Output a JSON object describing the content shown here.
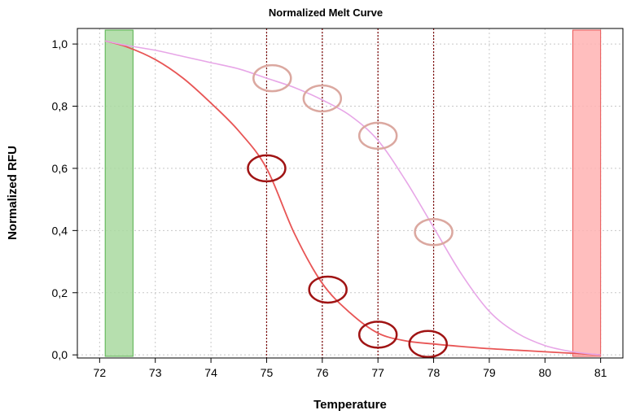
{
  "chart_data": {
    "type": "line",
    "title": "Normalized Melt Curve",
    "xlabel": "Temperature",
    "ylabel": "Normalized RFU",
    "xlim": [
      71.6,
      81.4
    ],
    "ylim": [
      -0.01,
      1.05
    ],
    "x_ticks": [
      "72",
      "73",
      "74",
      "75",
      "76",
      "77",
      "78",
      "79",
      "80",
      "81"
    ],
    "y_ticks": [
      "0,0",
      "0,2",
      "0,4",
      "0,6",
      "0,8",
      "1,0"
    ],
    "grid": true,
    "series": [
      {
        "color": "#e85555",
        "x": [
          72.1,
          72.5,
          73.0,
          73.5,
          74.0,
          74.5,
          75.0,
          75.5,
          76.0,
          76.5,
          77.0,
          77.5,
          78.0,
          78.5,
          79.0,
          79.5,
          80.0,
          80.5,
          81.0
        ],
        "values": [
          1.01,
          0.99,
          0.95,
          0.89,
          0.81,
          0.72,
          0.6,
          0.39,
          0.23,
          0.135,
          0.07,
          0.045,
          0.035,
          0.027,
          0.02,
          0.015,
          0.01,
          0.005,
          0.0
        ]
      },
      {
        "color": "#e7a6e7",
        "x": [
          72.1,
          72.5,
          73.0,
          73.5,
          74.0,
          74.5,
          75.0,
          75.5,
          76.0,
          76.5,
          77.0,
          77.5,
          78.0,
          78.5,
          79.0,
          79.5,
          80.0,
          80.5,
          81.0
        ],
        "values": [
          1.01,
          0.995,
          0.98,
          0.96,
          0.94,
          0.92,
          0.89,
          0.86,
          0.82,
          0.77,
          0.69,
          0.56,
          0.41,
          0.26,
          0.14,
          0.07,
          0.03,
          0.01,
          0.0
        ]
      }
    ],
    "vertical_markers": [
      75,
      76,
      77,
      78
    ],
    "highlight_regions": [
      {
        "x": [
          72.1,
          72.6
        ],
        "color": "#a9d9a0",
        "border": "#54b04a"
      },
      {
        "x": [
          80.5,
          81.0
        ],
        "color": "#ffb3b3",
        "border": "#e85555"
      }
    ],
    "markers": [
      {
        "x": 75.0,
        "y": 0.6,
        "color": "#a01414"
      },
      {
        "x": 76.1,
        "y": 0.21,
        "color": "#a01414"
      },
      {
        "x": 77.0,
        "y": 0.065,
        "color": "#a01414"
      },
      {
        "x": 77.9,
        "y": 0.035,
        "color": "#a01414"
      },
      {
        "x": 75.1,
        "y": 0.89,
        "color": "#dba8a0"
      },
      {
        "x": 76.0,
        "y": 0.825,
        "color": "#dba8a0"
      },
      {
        "x": 77.0,
        "y": 0.705,
        "color": "#dba8a0"
      },
      {
        "x": 78.0,
        "y": 0.395,
        "color": "#dba8a0"
      }
    ]
  }
}
